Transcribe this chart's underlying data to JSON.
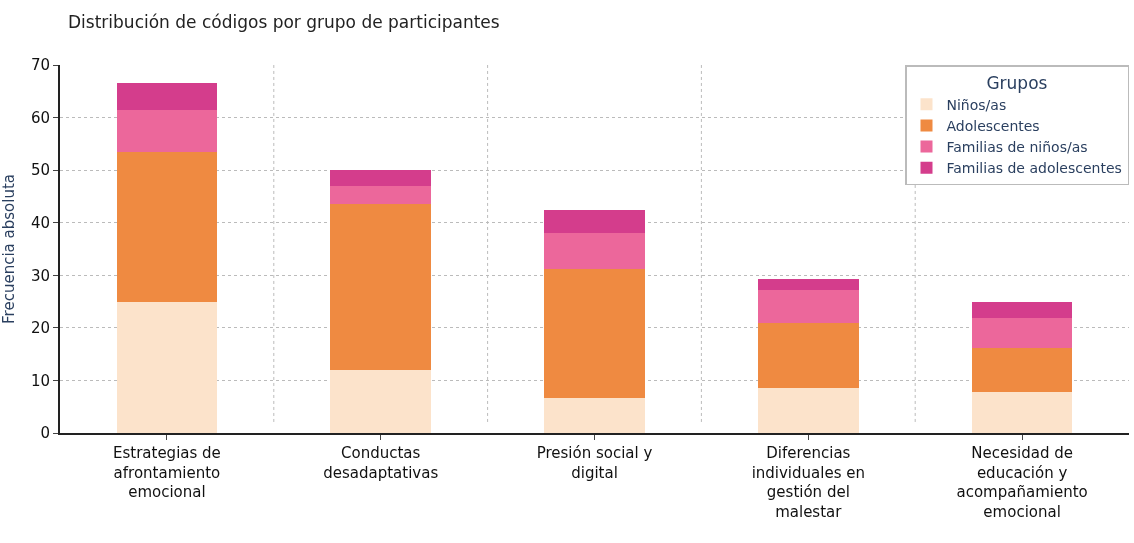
{
  "chart_data": {
    "type": "bar",
    "stacked": true,
    "title": "Distribución de códigos por grupo de participantes",
    "ylabel": "Frecuencia absoluta",
    "legend_title": "Grupos",
    "legend": "top right",
    "grid": true,
    "categories": [
      "Estrategias de afrontamiento emocional",
      "Conductas desadaptativas",
      "Presión social y digital",
      "Diferencias individuales en gestión del malestar",
      "Necesidad de educación y acompañamiento emocional"
    ],
    "series": [
      {
        "name": "Niños/as",
        "color": "#fce3cb",
        "values": [
          25,
          12,
          6.7,
          8.6,
          7.8
        ]
      },
      {
        "name": "Adolescentes",
        "color": "#ef8a41",
        "values": [
          28.5,
          31.5,
          24.5,
          12.4,
          8.3
        ]
      },
      {
        "name": "Familias de niños/as",
        "color": "#ec679b",
        "values": [
          8,
          3.5,
          6.8,
          6.2,
          5.7
        ]
      },
      {
        "name": "Familias de adolescentes",
        "color": "#d43d8c",
        "values": [
          5,
          3,
          4.4,
          2.1,
          3.2
        ]
      }
    ],
    "ylim": [
      0,
      70
    ],
    "yticks": [
      0,
      10,
      20,
      30,
      40,
      50,
      60,
      70
    ]
  }
}
